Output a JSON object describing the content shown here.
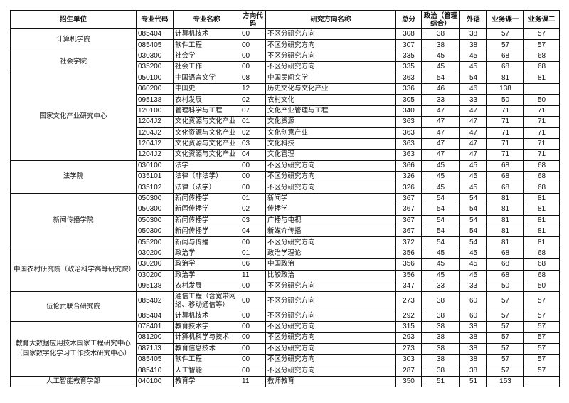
{
  "headers": [
    "招生单位",
    "专业代码",
    "专业名称",
    "方向代码",
    "研究方向名称",
    "总分",
    "政治（管理综合）",
    "外语",
    "业务课一",
    "业务课二"
  ],
  "groups": [
    {
      "unit": "计算机学院",
      "rows": [
        [
          "085404",
          "计算机技术",
          "00",
          "不区分研究方向",
          "308",
          "38",
          "38",
          "57",
          "57"
        ],
        [
          "085405",
          "软件工程",
          "00",
          "不区分研究方向",
          "307",
          "38",
          "38",
          "57",
          "57"
        ]
      ]
    },
    {
      "unit": "社会学院",
      "rows": [
        [
          "030300",
          "社会学",
          "00",
          "不区分研究方向",
          "335",
          "45",
          "45",
          "68",
          "68"
        ],
        [
          "035200",
          "社会工作",
          "00",
          "不区分研究方向",
          "335",
          "45",
          "45",
          "68",
          "68"
        ]
      ]
    },
    {
      "unit": "国家文化产业研究中心",
      "rows": [
        [
          "050100",
          "中国语言文学",
          "08",
          "中国民间文学",
          "363",
          "54",
          "54",
          "81",
          "81"
        ],
        [
          "060200",
          "中国史",
          "12",
          "历史文化与文化产业",
          "336",
          "46",
          "46",
          "138",
          ""
        ],
        [
          "095138",
          "农村发展",
          "02",
          "农村文化",
          "305",
          "33",
          "33",
          "50",
          "50"
        ],
        [
          "120100",
          "管理科学与工程",
          "07",
          "文化产业管理与工程",
          "340",
          "47",
          "47",
          "71",
          "71"
        ],
        [
          "1204J2",
          "文化资源与文化产业",
          "01",
          "文化资源",
          "363",
          "47",
          "47",
          "71",
          "71"
        ],
        [
          "1204J2",
          "文化资源与文化产业",
          "02",
          "文化创意产业",
          "363",
          "47",
          "47",
          "71",
          "71"
        ],
        [
          "1204J2",
          "文化资源与文化产业",
          "03",
          "文化科技",
          "363",
          "47",
          "47",
          "71",
          "71"
        ],
        [
          "1204J2",
          "文化资源与文化产业",
          "04",
          "文化管理",
          "363",
          "47",
          "47",
          "71",
          "71"
        ]
      ]
    },
    {
      "unit": "法学院",
      "rows": [
        [
          "030100",
          "法学",
          "00",
          "不区分研究方向",
          "366",
          "45",
          "45",
          "68",
          "68"
        ],
        [
          "035101",
          "法律（非法学）",
          "00",
          "不区分研究方向",
          "326",
          "45",
          "45",
          "68",
          "68"
        ],
        [
          "035102",
          "法律（法学）",
          "00",
          "不区分研究方向",
          "326",
          "45",
          "45",
          "68",
          "68"
        ]
      ]
    },
    {
      "unit": "新闻传播学院",
      "rows": [
        [
          "050300",
          "新闻传播学",
          "01",
          "新闻学",
          "367",
          "54",
          "54",
          "81",
          "81"
        ],
        [
          "050300",
          "新闻传播学",
          "02",
          "传播学",
          "367",
          "54",
          "54",
          "81",
          "81"
        ],
        [
          "050300",
          "新闻传播学",
          "03",
          "广播与电视",
          "367",
          "54",
          "54",
          "81",
          "81"
        ],
        [
          "050300",
          "新闻传播学",
          "04",
          "新媒介传播",
          "367",
          "54",
          "54",
          "81",
          "81"
        ],
        [
          "055200",
          "新闻与传播",
          "00",
          "不区分研究方向",
          "372",
          "54",
          "54",
          "81",
          "81"
        ]
      ]
    },
    {
      "unit": "中国农村研究院（政治科学高等研究院）",
      "rows": [
        [
          "030200",
          "政治学",
          "01",
          "政治学理论",
          "356",
          "45",
          "45",
          "68",
          "68"
        ],
        [
          "030200",
          "政治学",
          "06",
          "中国政治",
          "356",
          "45",
          "45",
          "68",
          "68"
        ],
        [
          "030200",
          "政治学",
          "11",
          "比较政治",
          "356",
          "45",
          "45",
          "68",
          "68"
        ],
        [
          "095138",
          "农村发展",
          "00",
          "不区分研究方向",
          "347",
          "33",
          "33",
          "50",
          "50"
        ]
      ]
    },
    {
      "unit": "伍伦贡联合研究院",
      "rows": [
        [
          "085402",
          "通信工程（含宽带网络、移动通信等）",
          "00",
          "不区分研究方向",
          "273",
          "38",
          "60",
          "57",
          "57"
        ],
        [
          "085404",
          "计算机技术",
          "00",
          "不区分研究方向",
          "292",
          "38",
          "60",
          "57",
          "57"
        ]
      ]
    },
    {
      "unit": "教育大数据应用技术国家工程研究中心（国家数字化学习工作技术研究中心）",
      "rows": [
        [
          "078401",
          "教育技术学",
          "00",
          "不区分研究方向",
          "315",
          "38",
          "38",
          "57",
          "57"
        ],
        [
          "081200",
          "计算机科学与技术",
          "00",
          "不区分研究方向",
          "293",
          "38",
          "38",
          "57",
          "57"
        ],
        [
          "0871J3",
          "教育信息技术",
          "00",
          "不区分研究方向",
          "273",
          "38",
          "38",
          "57",
          "57"
        ],
        [
          "085405",
          "软件工程",
          "00",
          "不区分研究方向",
          "303",
          "38",
          "38",
          "57",
          "57"
        ],
        [
          "085410",
          "人工智能",
          "00",
          "不区分研究方向",
          "287",
          "38",
          "38",
          "57",
          "57"
        ]
      ]
    },
    {
      "unit": "人工智能教育学部",
      "rows": [
        [
          "040100",
          "教育学",
          "11",
          "教师教育",
          "350",
          "51",
          "51",
          "153",
          ""
        ]
      ]
    }
  ]
}
